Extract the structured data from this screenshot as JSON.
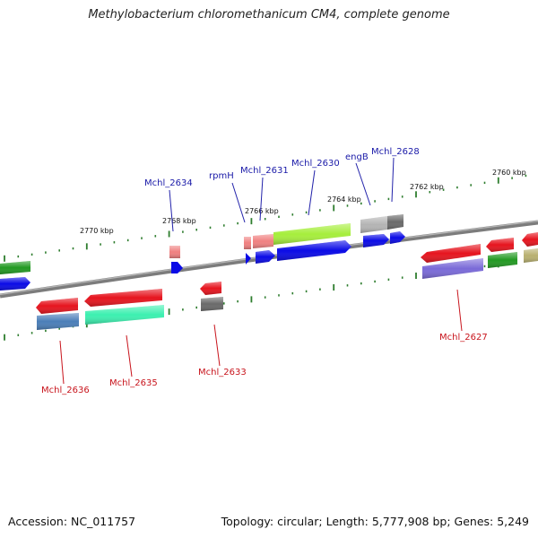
{
  "header": {
    "title": "Methylobacterium chloromethanicum CM4, complete genome"
  },
  "footer": {
    "accession": "Accession: NC_011757",
    "summary": "Topology: circular; Length: 5,777,908 bp; Genes: 5,249"
  },
  "scale_labels": [
    "2770 kbp",
    "2768 kbp",
    "2766 kbp",
    "2764 kbp",
    "2762 kbp",
    "2760 kbp"
  ],
  "forward_gene_labels": [
    "Mchl_2634",
    "rpmH",
    "Mchl_2631",
    "Mchl_2630",
    "engB",
    "Mchl_2628"
  ],
  "reverse_gene_labels": [
    "Mchl_2636",
    "Mchl_2635",
    "Mchl_2633",
    "Mchl_2627"
  ],
  "colors": {
    "backbone": "#808080",
    "tick": "#2e7d2e",
    "forward_label": "#1a1aa8",
    "reverse_label": "#c8141c",
    "cds_blue": "#0a0ae6",
    "cds_red": "#e6141e",
    "gene_green": "#229922",
    "gene_lightgreen": "#a6ee3c",
    "gene_salmon": "#f08080",
    "gene_gray": "#b4b4b4",
    "gene_darkgray": "#6a6a6a",
    "gene_steelblue": "#4a7eb8",
    "gene_aquamarine": "#3cf0b0",
    "gene_slateblue": "#7a6ad8",
    "gene_olive": "#b8b070"
  }
}
